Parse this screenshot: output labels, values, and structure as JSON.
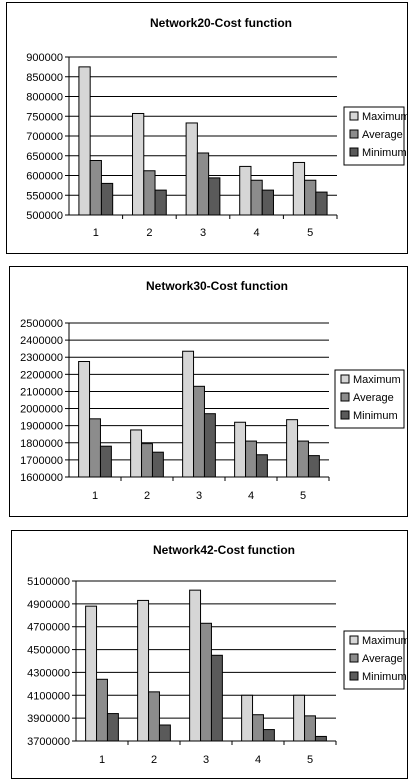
{
  "colors": {
    "maximum": "#d6d6d6",
    "average": "#8c8c8c",
    "minimum": "#5a5a5a",
    "grid": "#000000"
  },
  "chart_data": [
    {
      "type": "bar",
      "title": "Network20-Cost function",
      "categories": [
        "1",
        "2",
        "3",
        "4",
        "5"
      ],
      "series": [
        {
          "name": "Maximum",
          "values": [
            875000,
            757000,
            733000,
            623000,
            633000
          ]
        },
        {
          "name": "Average",
          "values": [
            638000,
            612000,
            657000,
            588000,
            588000
          ]
        },
        {
          "name": "Minimum",
          "values": [
            580000,
            563000,
            594000,
            563000,
            558000
          ]
        }
      ],
      "ylim": [
        500000,
        900000
      ],
      "yticks": [
        "500000",
        "550000",
        "600000",
        "650000",
        "700000",
        "750000",
        "800000",
        "850000",
        "900000"
      ],
      "grid": true,
      "legend": "right"
    },
    {
      "type": "bar",
      "title": "Network30-Cost function",
      "categories": [
        "1",
        "2",
        "3",
        "4",
        "5"
      ],
      "series": [
        {
          "name": "Maximum",
          "values": [
            2275000,
            1875000,
            2335000,
            1920000,
            1935000
          ]
        },
        {
          "name": "Average",
          "values": [
            1940000,
            1795000,
            2130000,
            1810000,
            1810000
          ]
        },
        {
          "name": "Minimum",
          "values": [
            1780000,
            1745000,
            1970000,
            1730000,
            1725000
          ]
        }
      ],
      "ylim": [
        1600000,
        2500000
      ],
      "yticks": [
        "1600000",
        "1700000",
        "1800000",
        "1900000",
        "2000000",
        "2100000",
        "2200000",
        "2300000",
        "2400000",
        "2500000"
      ],
      "grid": true,
      "legend": "right"
    },
    {
      "type": "bar",
      "title": "Network42-Cost function",
      "categories": [
        "1",
        "2",
        "3",
        "4",
        "5"
      ],
      "series": [
        {
          "name": "Maximum",
          "values": [
            4880000,
            4930000,
            5020000,
            4100000,
            4100000
          ]
        },
        {
          "name": "Average",
          "values": [
            4240000,
            4130000,
            4730000,
            3930000,
            3920000
          ]
        },
        {
          "name": "Minimum",
          "values": [
            3940000,
            3840000,
            4450000,
            3800000,
            3740000
          ]
        }
      ],
      "ylim": [
        3700000,
        5100000
      ],
      "yticks": [
        "3700000",
        "3900000",
        "4100000",
        "4300000",
        "4500000",
        "4700000",
        "4900000",
        "5100000"
      ],
      "grid": true,
      "legend": "right"
    }
  ]
}
